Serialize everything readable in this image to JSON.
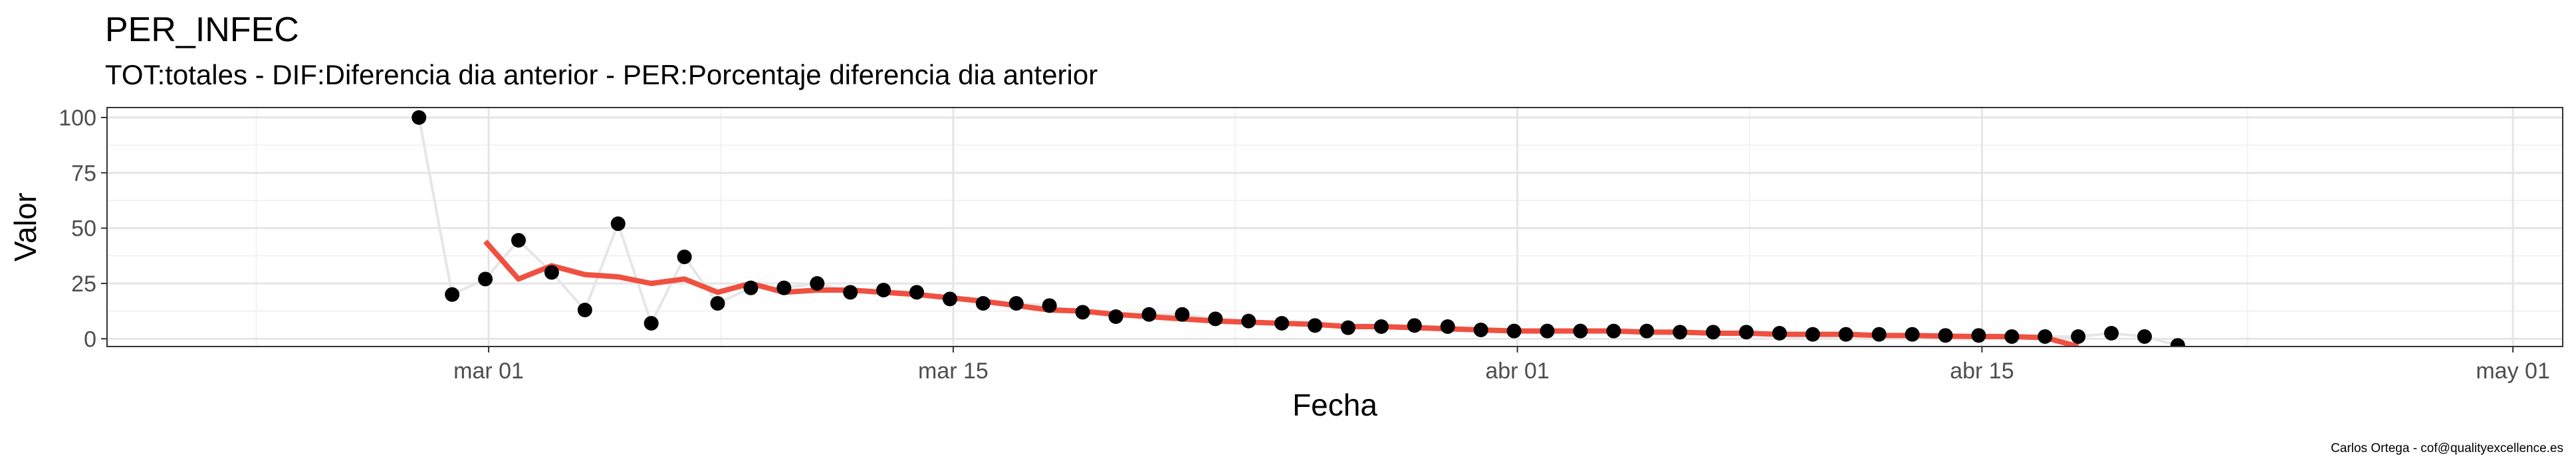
{
  "chart_data": {
    "type": "line+scatter",
    "title": "PER_INFEC",
    "subtitle": "TOT:totales - DIF:Diferencia dia anterior - PER:Porcentaje diferencia dia anterior",
    "xlabel": "Fecha",
    "ylabel": "Valor",
    "caption": "Carlos Ortega - cof@qualityexcellence.es",
    "x_tick_labels": [
      "mar 01",
      "mar 15",
      "abr 01",
      "abr 15",
      "may 01"
    ],
    "x_tick_days": [
      29,
      43,
      60,
      74,
      90
    ],
    "y_ticks": [
      0,
      25,
      50,
      75,
      100
    ],
    "xlim_days": [
      17.5,
      91.5
    ],
    "ylim": [
      -3.5,
      104.5
    ],
    "grid": true,
    "points": [
      [
        26.9,
        100
      ],
      [
        27.9,
        20
      ],
      [
        28.9,
        27
      ],
      [
        29.9,
        44.5
      ],
      [
        30.9,
        30
      ],
      [
        31.9,
        13
      ],
      [
        32.9,
        52
      ],
      [
        33.9,
        7
      ],
      [
        34.9,
        37
      ],
      [
        35.9,
        16
      ],
      [
        36.9,
        23
      ],
      [
        37.9,
        23
      ],
      [
        38.9,
        25
      ],
      [
        39.9,
        21
      ],
      [
        40.9,
        22
      ],
      [
        41.9,
        21
      ],
      [
        42.9,
        18
      ],
      [
        43.9,
        16
      ],
      [
        44.9,
        16
      ],
      [
        45.9,
        15
      ],
      [
        46.9,
        12
      ],
      [
        47.9,
        10
      ],
      [
        48.9,
        11
      ],
      [
        49.9,
        11
      ],
      [
        50.9,
        9
      ],
      [
        51.9,
        8
      ],
      [
        52.9,
        7
      ],
      [
        53.9,
        6
      ],
      [
        54.9,
        5
      ],
      [
        55.9,
        5.5
      ],
      [
        56.9,
        6
      ],
      [
        57.9,
        5.5
      ],
      [
        58.9,
        4
      ],
      [
        59.9,
        3.5
      ],
      [
        60.9,
        3.5
      ],
      [
        61.9,
        3.5
      ],
      [
        62.9,
        3.5
      ],
      [
        63.9,
        3.5
      ],
      [
        64.9,
        3
      ],
      [
        65.9,
        3
      ],
      [
        66.9,
        3
      ],
      [
        67.9,
        2.5
      ],
      [
        68.9,
        2
      ],
      [
        69.9,
        2
      ],
      [
        70.9,
        2
      ],
      [
        71.9,
        2
      ],
      [
        72.9,
        1.5
      ],
      [
        73.9,
        1.5
      ],
      [
        74.9,
        1
      ],
      [
        75.9,
        1
      ],
      [
        76.9,
        1
      ],
      [
        77.9,
        2.5
      ],
      [
        78.9,
        1
      ],
      [
        79.9,
        -3
      ]
    ],
    "smooth_line": [
      [
        28.9,
        44
      ],
      [
        29.9,
        27
      ],
      [
        30.9,
        33
      ],
      [
        31.9,
        29
      ],
      [
        32.9,
        28
      ],
      [
        33.9,
        25
      ],
      [
        34.9,
        27
      ],
      [
        35.9,
        21
      ],
      [
        36.9,
        25
      ],
      [
        37.9,
        21
      ],
      [
        38.9,
        22
      ],
      [
        39.9,
        22
      ],
      [
        40.9,
        21
      ],
      [
        41.9,
        20
      ],
      [
        42.9,
        18.5
      ],
      [
        43.9,
        17
      ],
      [
        44.9,
        15
      ],
      [
        45.9,
        13
      ],
      [
        46.9,
        12.5
      ],
      [
        47.9,
        11
      ],
      [
        48.9,
        10
      ],
      [
        49.9,
        9
      ],
      [
        50.9,
        8
      ],
      [
        51.9,
        7.5
      ],
      [
        52.9,
        7
      ],
      [
        53.9,
        6.5
      ],
      [
        54.9,
        5.5
      ],
      [
        55.9,
        5.5
      ],
      [
        56.9,
        5
      ],
      [
        57.9,
        4.5
      ],
      [
        58.9,
        4
      ],
      [
        59.9,
        3.5
      ],
      [
        60.9,
        3.5
      ],
      [
        61.9,
        3.5
      ],
      [
        62.9,
        3.5
      ],
      [
        63.9,
        3
      ],
      [
        64.9,
        3
      ],
      [
        65.9,
        2.5
      ],
      [
        66.9,
        2.5
      ],
      [
        67.9,
        2
      ],
      [
        68.9,
        2
      ],
      [
        69.9,
        2
      ],
      [
        70.9,
        1.5
      ],
      [
        71.9,
        1.5
      ],
      [
        72.9,
        1.2
      ],
      [
        73.9,
        1
      ],
      [
        74.9,
        1
      ],
      [
        75.9,
        0.5
      ],
      [
        76.9,
        -3.5
      ]
    ],
    "colors": {
      "points": "#000000",
      "raw_line": "#e6e6e6",
      "smooth_line": "#f05040",
      "panel_border": "#333333",
      "grid_major": "#e5e5e5",
      "grid_minor": "#f2f2f2"
    }
  }
}
